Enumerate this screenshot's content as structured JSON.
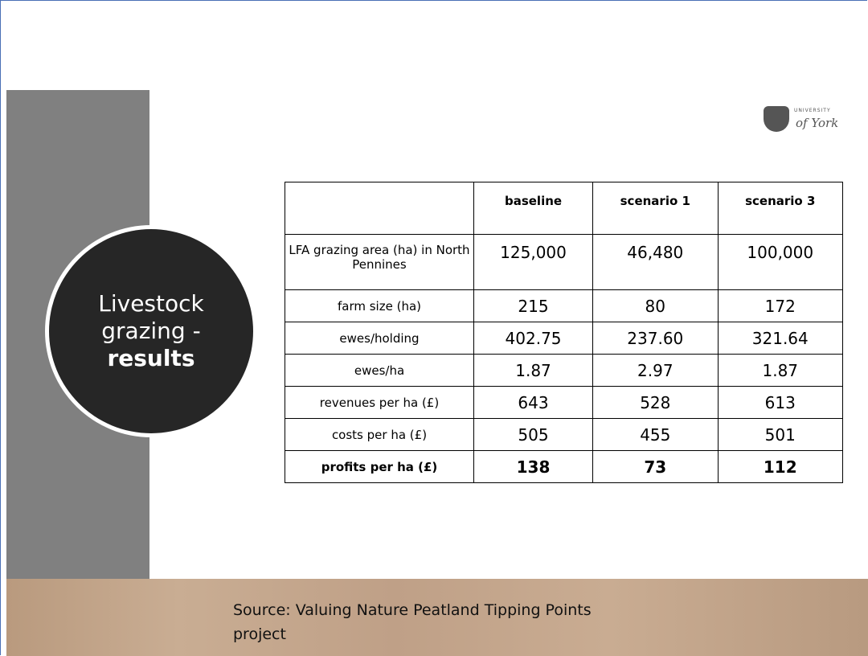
{
  "logo": {
    "line1": "UNIVERSITY",
    "line2": "of York"
  },
  "title": {
    "lines": [
      "Livestock",
      "grazing -",
      "results"
    ]
  },
  "table": {
    "header": [
      "",
      "baseline",
      "scenario 1",
      "scenario 3"
    ],
    "rows": [
      [
        "LFA grazing area (ha) in North Pennines",
        "125,000",
        "46,480",
        "100,000"
      ],
      [
        "farm size (ha)",
        "215",
        "80",
        "172"
      ],
      [
        "ewes/holding",
        "402.75",
        "237.60",
        "321.64"
      ],
      [
        "ewes/ha",
        "1.87",
        "2.97",
        "1.87"
      ],
      [
        "revenues per ha (£)",
        "643",
        "528",
        "613"
      ],
      [
        "costs per ha (£)",
        "505",
        "455",
        "501"
      ],
      [
        "profits per ha (£)",
        "138",
        "73",
        "112"
      ]
    ]
  },
  "source": {
    "lines": [
      "Source: Valuing Nature Peatland Tipping Points",
      "project"
    ]
  }
}
